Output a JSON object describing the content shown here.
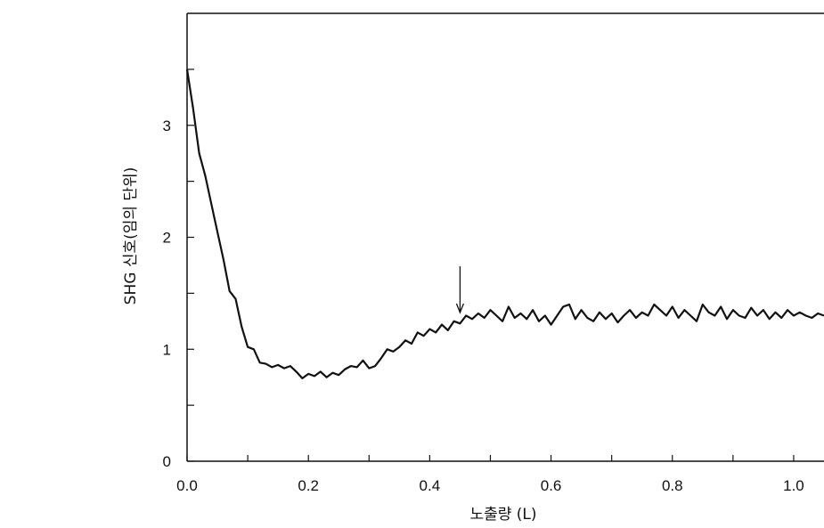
{
  "chart_data": {
    "type": "line",
    "title": "",
    "xlabel": "노출량 (L)",
    "ylabel": "SHG 신호(임의 단위)",
    "xlim": [
      0.0,
      1.05
    ],
    "ylim": [
      0,
      4
    ],
    "x_ticks": [
      "0.0",
      "0.2",
      "0.4",
      "0.6",
      "0.8",
      "1.0"
    ],
    "x_tick_values": [
      0.0,
      0.2,
      0.4,
      0.6,
      0.8,
      1.0
    ],
    "y_ticks": [
      "0",
      "1",
      "2",
      "3"
    ],
    "y_tick_values": [
      0,
      1,
      2,
      3
    ],
    "x_minor_step": 0.1,
    "y_minor_step": 0.5,
    "grid": false,
    "line_color": "#111111",
    "annotation": {
      "type": "arrow",
      "x": 0.45,
      "y": 1.28
    },
    "series": [
      {
        "x": [
          0.0,
          0.01,
          0.02,
          0.03,
          0.04,
          0.05,
          0.06,
          0.07,
          0.08,
          0.09,
          0.1,
          0.11,
          0.12,
          0.13,
          0.14,
          0.15,
          0.16,
          0.17,
          0.18,
          0.19,
          0.2,
          0.21,
          0.22,
          0.23,
          0.24,
          0.25,
          0.26,
          0.27,
          0.28,
          0.29,
          0.3,
          0.31,
          0.32,
          0.33,
          0.34,
          0.35,
          0.36,
          0.37,
          0.38,
          0.39,
          0.4,
          0.41,
          0.42,
          0.43,
          0.44,
          0.45,
          0.46,
          0.47,
          0.48,
          0.49,
          0.5,
          0.51,
          0.52,
          0.53,
          0.54,
          0.55,
          0.56,
          0.57,
          0.58,
          0.59,
          0.6,
          0.61,
          0.62,
          0.63,
          0.64,
          0.65,
          0.66,
          0.67,
          0.68,
          0.69,
          0.7,
          0.71,
          0.72,
          0.73,
          0.74,
          0.75,
          0.76,
          0.77,
          0.78,
          0.79,
          0.8,
          0.81,
          0.82,
          0.83,
          0.84,
          0.85,
          0.86,
          0.87,
          0.88,
          0.89,
          0.9,
          0.91,
          0.92,
          0.93,
          0.94,
          0.95,
          0.96,
          0.97,
          0.98,
          0.99,
          1.0,
          1.01,
          1.02,
          1.03,
          1.04,
          1.05
        ],
        "y": [
          3.5,
          3.15,
          2.75,
          2.55,
          2.3,
          2.05,
          1.8,
          1.52,
          1.45,
          1.2,
          1.02,
          1.0,
          0.88,
          0.87,
          0.84,
          0.86,
          0.83,
          0.85,
          0.8,
          0.74,
          0.78,
          0.76,
          0.8,
          0.75,
          0.79,
          0.77,
          0.82,
          0.85,
          0.84,
          0.9,
          0.83,
          0.85,
          0.92,
          1.0,
          0.98,
          1.02,
          1.08,
          1.05,
          1.15,
          1.12,
          1.18,
          1.15,
          1.22,
          1.17,
          1.25,
          1.23,
          1.3,
          1.27,
          1.32,
          1.28,
          1.35,
          1.3,
          1.25,
          1.38,
          1.28,
          1.32,
          1.27,
          1.35,
          1.25,
          1.3,
          1.22,
          1.3,
          1.38,
          1.4,
          1.27,
          1.35,
          1.28,
          1.25,
          1.33,
          1.27,
          1.32,
          1.24,
          1.3,
          1.35,
          1.28,
          1.33,
          1.3,
          1.4,
          1.35,
          1.3,
          1.38,
          1.28,
          1.35,
          1.3,
          1.25,
          1.4,
          1.33,
          1.3,
          1.38,
          1.27,
          1.35,
          1.3,
          1.28,
          1.37,
          1.3,
          1.35,
          1.27,
          1.33,
          1.28,
          1.35,
          1.3,
          1.33,
          1.3,
          1.28,
          1.32,
          1.3
        ]
      }
    ]
  }
}
